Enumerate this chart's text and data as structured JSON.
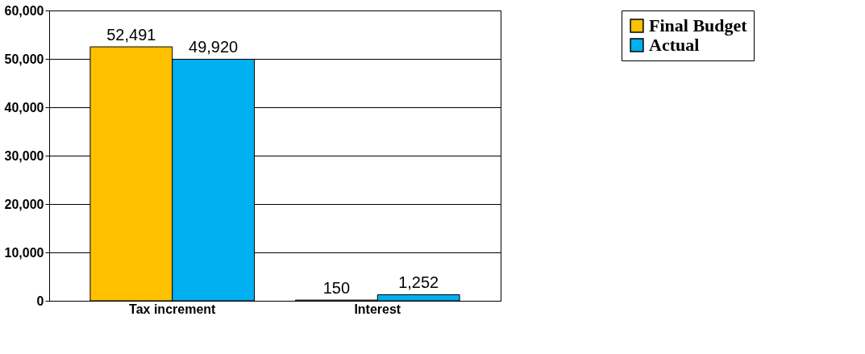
{
  "chart_data": {
    "type": "bar",
    "categories": [
      "Tax increment",
      "Interest"
    ],
    "series": [
      {
        "name": "Final Budget",
        "color": "#ffc000",
        "values": [
          52491,
          150
        ],
        "value_labels": [
          "52,491",
          "150"
        ]
      },
      {
        "name": "Actual",
        "color": "#00b0f0",
        "values": [
          49920,
          1252
        ],
        "value_labels": [
          "49,920",
          "1,252"
        ]
      }
    ],
    "ylim": [
      0,
      60000
    ],
    "yticks": [
      0,
      {
        "value": 10000,
        "label": "10,000"
      },
      {
        "value": 20000,
        "label": "20,000"
      },
      {
        "value": 30000,
        "label": "30,000"
      },
      {
        "value": 40000,
        "label": "40,000"
      },
      {
        "value": 50000,
        "label": "50,000"
      },
      {
        "value": 60000,
        "label": "60,000"
      }
    ],
    "grid": "y",
    "legend": "right"
  }
}
